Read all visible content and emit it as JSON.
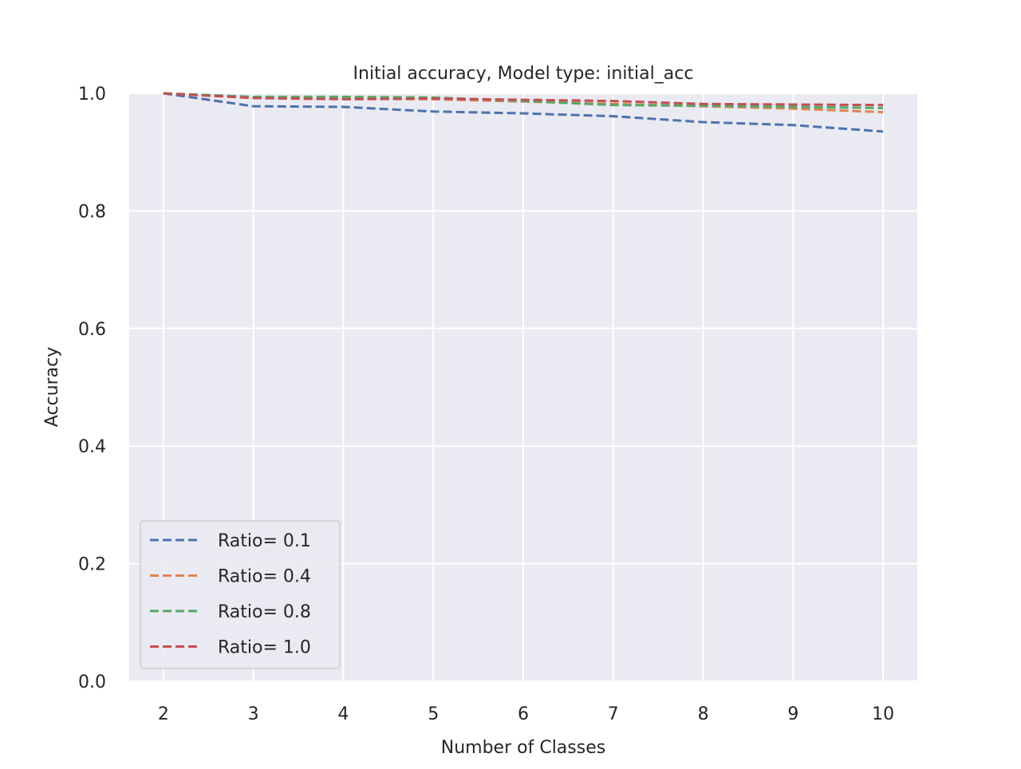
{
  "chart_data": {
    "type": "line",
    "title": "Initial accuracy, Model type: initial_acc",
    "xlabel": "Number of Classes",
    "ylabel": "Accuracy",
    "xlim": [
      1.62,
      10.38
    ],
    "ylim": [
      0.0,
      1.0
    ],
    "xticks": [
      2,
      3,
      4,
      5,
      6,
      7,
      8,
      9,
      10
    ],
    "yticks": [
      "0.0",
      "0.2",
      "0.4",
      "0.6",
      "0.8",
      "1.0"
    ],
    "grid": true,
    "line_style": "dashed",
    "legend_position": "lower-left",
    "x": [
      2,
      3,
      4,
      5,
      6,
      7,
      8,
      9,
      10
    ],
    "series": [
      {
        "name": "Ratio= 0.1",
        "color": "#4c72b0",
        "values": [
          1.0,
          0.978,
          0.977,
          0.969,
          0.966,
          0.961,
          0.951,
          0.946,
          0.935
        ]
      },
      {
        "name": "Ratio= 0.4",
        "color": "#dd8452",
        "values": [
          1.0,
          0.993,
          0.991,
          0.99,
          0.986,
          0.982,
          0.978,
          0.974,
          0.968
        ]
      },
      {
        "name": "Ratio= 0.8",
        "color": "#55a868",
        "values": [
          1.0,
          0.994,
          0.994,
          0.993,
          0.987,
          0.98,
          0.979,
          0.977,
          0.975
        ]
      },
      {
        "name": "Ratio= 1.0",
        "color": "#c44e52",
        "values": [
          1.0,
          0.992,
          0.99,
          0.991,
          0.989,
          0.987,
          0.982,
          0.981,
          0.98
        ]
      }
    ]
  }
}
